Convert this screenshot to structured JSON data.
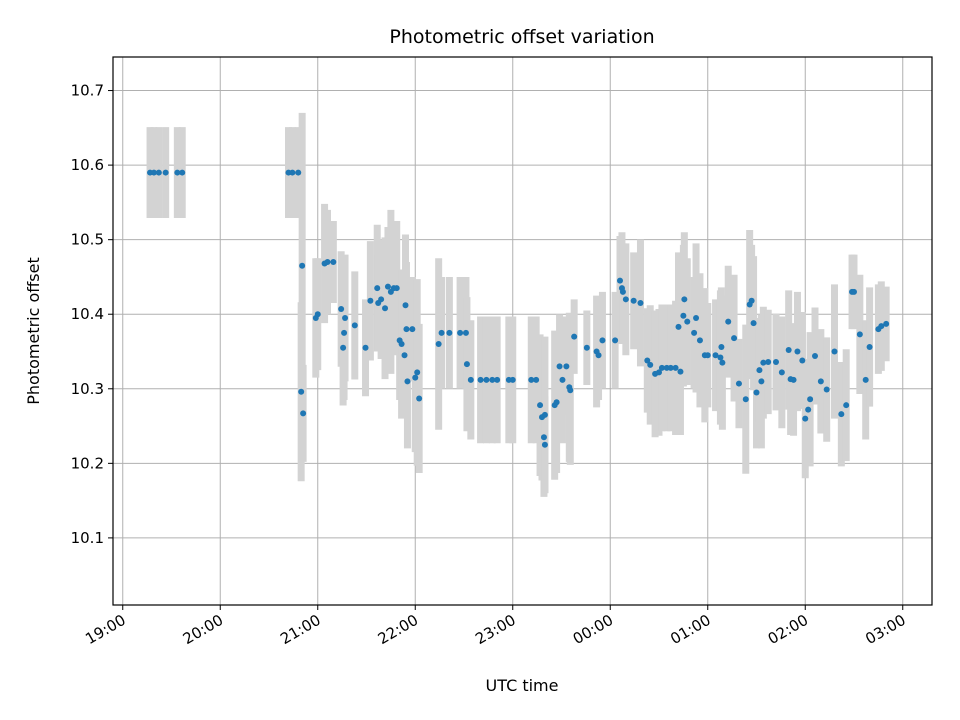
{
  "chart_data": {
    "type": "scatter",
    "title": "Photometric offset variation",
    "xlabel": "UTC time",
    "ylabel": "Photometric offset",
    "x_unit": "hours (UTC, continuing past midnight as 24+)",
    "xlim": [
      18.9,
      27.3
    ],
    "ylim": [
      10.01,
      10.745
    ],
    "x_ticks": [
      {
        "value": 19,
        "label": "19:00"
      },
      {
        "value": 20,
        "label": "20:00"
      },
      {
        "value": 21,
        "label": "21:00"
      },
      {
        "value": 22,
        "label": "22:00"
      },
      {
        "value": 23,
        "label": "23:00"
      },
      {
        "value": 24,
        "label": "00:00"
      },
      {
        "value": 25,
        "label": "01:00"
      },
      {
        "value": 26,
        "label": "02:00"
      },
      {
        "value": 27,
        "label": "03:00"
      }
    ],
    "y_ticks": [
      {
        "value": 10.1,
        "label": "10.1"
      },
      {
        "value": 10.2,
        "label": "10.2"
      },
      {
        "value": 10.3,
        "label": "10.3"
      },
      {
        "value": 10.4,
        "label": "10.4"
      },
      {
        "value": 10.5,
        "label": "10.5"
      },
      {
        "value": 10.6,
        "label": "10.6"
      },
      {
        "value": 10.7,
        "label": "10.7"
      }
    ],
    "grid": true,
    "marker_color": "#1f77b4",
    "errorbar_color": "#d3d3d3",
    "points": [
      [
        19.28,
        10.59,
        0.122
      ],
      [
        19.32,
        10.59,
        0.122
      ],
      [
        19.37,
        10.59,
        0.122
      ],
      [
        19.44,
        10.59,
        0.122
      ],
      [
        19.56,
        10.59,
        0.122
      ],
      [
        19.61,
        10.59,
        0.122
      ],
      [
        20.7,
        10.59,
        0.122
      ],
      [
        20.74,
        10.59,
        0.122
      ],
      [
        20.8,
        10.59,
        0.122
      ],
      [
        20.84,
        10.465,
        0.41
      ],
      [
        20.83,
        10.296,
        0.24
      ],
      [
        20.85,
        10.267,
        0.13
      ],
      [
        20.98,
        10.395,
        0.16
      ],
      [
        21.0,
        10.4,
        0.15
      ],
      [
        21.07,
        10.468,
        0.16
      ],
      [
        21.1,
        10.47,
        0.14
      ],
      [
        21.16,
        10.47,
        0.11
      ],
      [
        21.24,
        10.407,
        0.155
      ],
      [
        21.26,
        10.355,
        0.155
      ],
      [
        21.27,
        10.375,
        0.18
      ],
      [
        21.28,
        10.395,
        0.17
      ],
      [
        21.38,
        10.385,
        0.145
      ],
      [
        21.49,
        10.355,
        0.13
      ],
      [
        21.54,
        10.418,
        0.16
      ],
      [
        21.61,
        10.435,
        0.17
      ],
      [
        21.62,
        10.415,
        0.13
      ],
      [
        21.65,
        10.42,
        0.16
      ],
      [
        21.69,
        10.408,
        0.19
      ],
      [
        21.72,
        10.437,
        0.16
      ],
      [
        21.75,
        10.43,
        0.22
      ],
      [
        21.78,
        10.435,
        0.16
      ],
      [
        21.81,
        10.435,
        0.18
      ],
      [
        21.84,
        10.365,
        0.16
      ],
      [
        21.86,
        10.36,
        0.2
      ],
      [
        21.89,
        10.345,
        0.15
      ],
      [
        21.9,
        10.412,
        0.19
      ],
      [
        21.91,
        10.38,
        0.18
      ],
      [
        21.92,
        10.31,
        0.18
      ],
      [
        21.97,
        10.38,
        0.14
      ],
      [
        22.0,
        10.315,
        0.2
      ],
      [
        22.02,
        10.322,
        0.25
      ],
      [
        22.04,
        10.287,
        0.2
      ],
      [
        22.24,
        10.36,
        0.23
      ],
      [
        22.27,
        10.375,
        0.15
      ],
      [
        22.35,
        10.375,
        0.15
      ],
      [
        22.46,
        10.375,
        0.15
      ],
      [
        22.52,
        10.375,
        0.15
      ],
      [
        22.53,
        10.333,
        0.18
      ],
      [
        22.57,
        10.312,
        0.16
      ],
      [
        22.67,
        10.312,
        0.17
      ],
      [
        22.73,
        10.312,
        0.17
      ],
      [
        22.79,
        10.312,
        0.17
      ],
      [
        22.84,
        10.312,
        0.17
      ],
      [
        22.96,
        10.312,
        0.17
      ],
      [
        23.0,
        10.312,
        0.17
      ],
      [
        23.19,
        10.312,
        0.17
      ],
      [
        23.24,
        10.312,
        0.17
      ],
      [
        23.28,
        10.278,
        0.19
      ],
      [
        23.3,
        10.262,
        0.17
      ],
      [
        23.32,
        10.235,
        0.16
      ],
      [
        23.33,
        10.265,
        0.21
      ],
      [
        23.33,
        10.225,
        0.13
      ],
      [
        23.43,
        10.278,
        0.2
      ],
      [
        23.45,
        10.282,
        0.19
      ],
      [
        23.48,
        10.33,
        0.14
      ],
      [
        23.51,
        10.312,
        0.17
      ],
      [
        23.55,
        10.33,
        0.13
      ],
      [
        23.58,
        10.302,
        0.2
      ],
      [
        23.59,
        10.298,
        0.2
      ],
      [
        23.63,
        10.37,
        0.1
      ],
      [
        23.76,
        10.355,
        0.1
      ],
      [
        23.86,
        10.35,
        0.15
      ],
      [
        23.88,
        10.345,
        0.12
      ],
      [
        23.92,
        10.365,
        0.13
      ],
      [
        24.05,
        10.365,
        0.13
      ],
      [
        24.1,
        10.445,
        0.12
      ],
      [
        24.12,
        10.435,
        0.15
      ],
      [
        24.13,
        10.43,
        0.13
      ],
      [
        24.16,
        10.42,
        0.15
      ],
      [
        24.24,
        10.418,
        0.13
      ],
      [
        24.31,
        10.415,
        0.17
      ],
      [
        24.38,
        10.338,
        0.14
      ],
      [
        24.41,
        10.332,
        0.16
      ],
      [
        24.46,
        10.32,
        0.17
      ],
      [
        24.5,
        10.322,
        0.17
      ],
      [
        24.53,
        10.328,
        0.17
      ],
      [
        24.58,
        10.328,
        0.17
      ],
      [
        24.62,
        10.328,
        0.17
      ],
      [
        24.67,
        10.328,
        0.18
      ],
      [
        24.7,
        10.383,
        0.2
      ],
      [
        24.72,
        10.323,
        0.17
      ],
      [
        24.75,
        10.398,
        0.19
      ],
      [
        24.76,
        10.42,
        0.18
      ],
      [
        24.79,
        10.39,
        0.17
      ],
      [
        24.86,
        10.375,
        0.15
      ],
      [
        24.88,
        10.395,
        0.2
      ],
      [
        24.92,
        10.365,
        0.18
      ],
      [
        24.97,
        10.345,
        0.18
      ],
      [
        25.0,
        10.345,
        0.14
      ],
      [
        25.08,
        10.345,
        0.15
      ],
      [
        25.13,
        10.342,
        0.18
      ],
      [
        25.14,
        10.356,
        0.16
      ],
      [
        25.15,
        10.335,
        0.18
      ],
      [
        25.21,
        10.39,
        0.15
      ],
      [
        25.27,
        10.368,
        0.17
      ],
      [
        25.32,
        10.307,
        0.12
      ],
      [
        25.39,
        10.286,
        0.2
      ],
      [
        25.43,
        10.413,
        0.2
      ],
      [
        25.45,
        10.418,
        0.15
      ],
      [
        25.47,
        10.388,
        0.18
      ],
      [
        25.5,
        10.295,
        0.15
      ],
      [
        25.53,
        10.325,
        0.14
      ],
      [
        25.55,
        10.31,
        0.18
      ],
      [
        25.57,
        10.335,
        0.15
      ],
      [
        25.62,
        10.336,
        0.14
      ],
      [
        25.7,
        10.336,
        0.13
      ],
      [
        25.76,
        10.322,
        0.15
      ],
      [
        25.83,
        10.352,
        0.16
      ],
      [
        25.85,
        10.313,
        0.15
      ],
      [
        25.88,
        10.312,
        0.15
      ],
      [
        25.92,
        10.35,
        0.16
      ],
      [
        25.97,
        10.338,
        0.13
      ],
      [
        26.0,
        10.26,
        0.16
      ],
      [
        26.03,
        10.272,
        0.13
      ],
      [
        26.05,
        10.286,
        0.18
      ],
      [
        26.1,
        10.344,
        0.13
      ],
      [
        26.16,
        10.31,
        0.14
      ],
      [
        26.22,
        10.299,
        0.14
      ],
      [
        26.3,
        10.35,
        0.18
      ],
      [
        26.37,
        10.266,
        0.14
      ],
      [
        26.42,
        10.278,
        0.15
      ],
      [
        26.48,
        10.43,
        0.1
      ],
      [
        26.5,
        10.43,
        0.1
      ],
      [
        26.56,
        10.373,
        0.16
      ],
      [
        26.62,
        10.312,
        0.16
      ],
      [
        26.66,
        10.356,
        0.16
      ],
      [
        26.75,
        10.38,
        0.12
      ],
      [
        26.78,
        10.384,
        0.12
      ],
      [
        26.83,
        10.387,
        0.1
      ]
    ]
  }
}
